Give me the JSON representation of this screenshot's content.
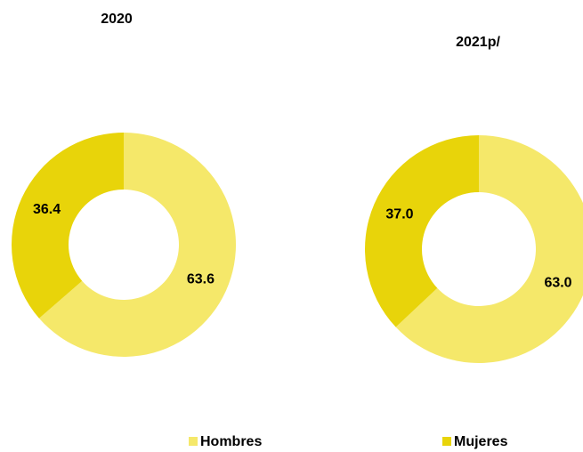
{
  "legend": {
    "labels": [
      "Hombres",
      "Mujeres"
    ]
  },
  "chart_data": [
    {
      "type": "pie",
      "title": "2020",
      "values": [
        63.6,
        36.4
      ],
      "colors": [
        "#f5e86a",
        "#e8d40a"
      ]
    },
    {
      "type": "pie",
      "title": "2021p/",
      "values": [
        63,
        37
      ],
      "value_labels": [
        "63.0",
        "37.0"
      ],
      "colors": [
        "#f5e86a",
        "#e8d40a"
      ]
    }
  ]
}
